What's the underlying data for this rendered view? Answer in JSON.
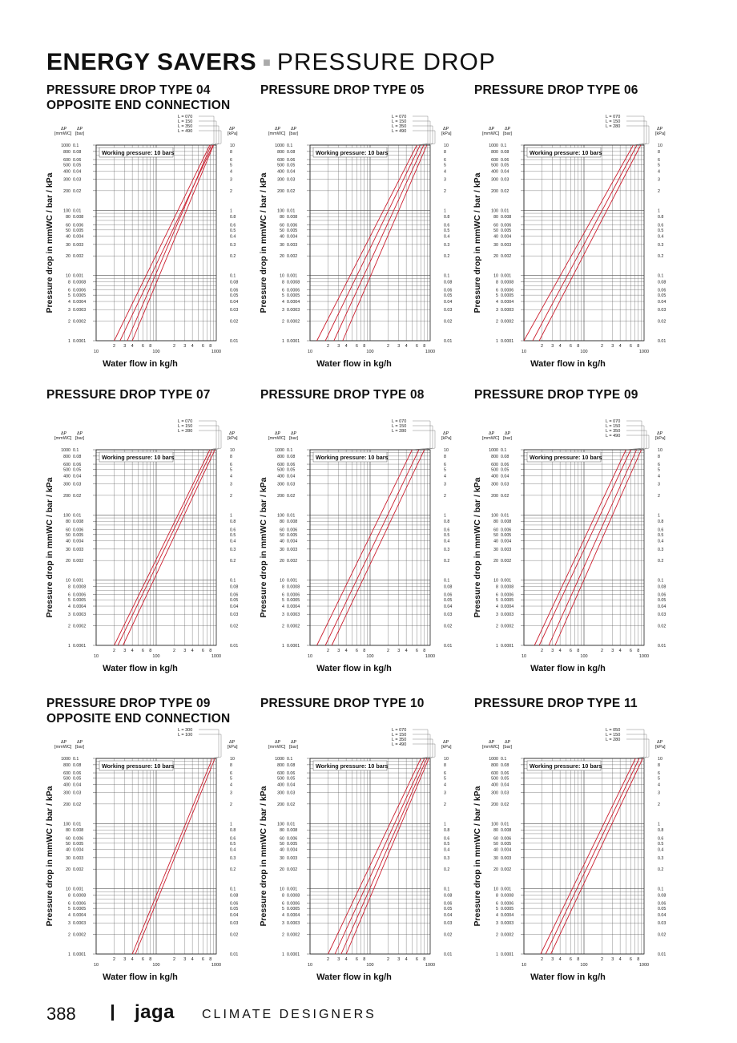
{
  "page": {
    "title_bold": "ENERGY SAVERS",
    "title_separator": "■",
    "title_light": "PRESSURE DROP",
    "page_number": "388",
    "brand": "jaga",
    "tagline": "CLIMATE DESIGNERS"
  },
  "axis_text": {
    "dp": "ΔP",
    "mmwc": "[mmWC]",
    "bar": "[bar]",
    "kpa": "[kPa]",
    "working_pressure": "Working pressure: 10 bars",
    "ylabel": "Pressure drop in mmWC / bar / kPa",
    "xlabel": "Water flow in kg/h"
  },
  "ticks": {
    "mmwc": [
      "1000",
      "800",
      "600",
      "500",
      "400",
      "300",
      "200",
      "100",
      "80",
      "60",
      "50",
      "40",
      "30",
      "20",
      "10",
      "8",
      "6",
      "5",
      "4",
      "3",
      "2",
      "1"
    ],
    "bar": [
      "0.1",
      "0.08",
      "0.06",
      "0.05",
      "0.04",
      "0.03",
      "0.02",
      "0.01",
      "0.008",
      "0.006",
      "0.005",
      "0.004",
      "0.003",
      "0.002",
      "0.001",
      "0.0008",
      "0.0006",
      "0.0005",
      "0.0004",
      "0.0003",
      "0.0002",
      "0.0001"
    ],
    "kpa": [
      "10",
      "8",
      "6",
      "5",
      "4",
      "3",
      "2",
      "1",
      "0.8",
      "0.6",
      "0.5",
      "0.4",
      "0.3",
      "0.2",
      "0.1",
      "0.08",
      "0.06",
      "0.05",
      "0.04",
      "0.03",
      "0.02",
      "0.01"
    ],
    "x_major": [
      "10",
      "100",
      "1000"
    ],
    "x_minor": [
      "2",
      "3",
      "4",
      "6",
      "8",
      "2",
      "3",
      "4",
      "6",
      "8"
    ]
  },
  "chart_data": [
    {
      "type": "line",
      "title": "PRESSURE DROP TYPE 04\nOPPOSITE END CONNECTION",
      "xlabel": "Water flow in kg/h",
      "ylabel": "Pressure drop in mmWC / bar / kPa",
      "xlim": [
        10,
        1000
      ],
      "ylim": [
        1,
        1000
      ],
      "xscale": "log",
      "yscale": "log",
      "annotation": "Working pressure: 10 bars",
      "series": [
        {
          "name": "L = 070",
          "x": [
            20,
            780
          ]
        },
        {
          "name": "L = 150",
          "x": [
            25,
            880
          ]
        },
        {
          "name": "L = 350",
          "x": [
            33,
            820
          ]
        },
        {
          "name": "L = 490",
          "x": [
            40,
            900
          ]
        }
      ]
    },
    {
      "type": "line",
      "title": "PRESSURE DROP TYPE 05",
      "xlabel": "Water flow in kg/h",
      "ylabel": "Pressure drop in mmWC / bar / kPa",
      "xlim": [
        10,
        1000
      ],
      "ylim": [
        1,
        1000
      ],
      "xscale": "log",
      "yscale": "log",
      "annotation": "Working pressure: 10 bars",
      "series": [
        {
          "name": "L = 070",
          "x": [
            13,
            600
          ]
        },
        {
          "name": "L = 150",
          "x": [
            18,
            680
          ]
        },
        {
          "name": "L = 350",
          "x": [
            25,
            780
          ]
        },
        {
          "name": "L = 490",
          "x": [
            35,
            880
          ]
        }
      ]
    },
    {
      "type": "line",
      "title": "PRESSURE DROP TYPE 06",
      "xlabel": "Water flow in kg/h",
      "ylabel": "Pressure drop in mmWC / bar / kPa",
      "xlim": [
        10,
        1000
      ],
      "ylim": [
        1,
        1000
      ],
      "xscale": "log",
      "yscale": "log",
      "annotation": "Working pressure: 10 bars",
      "series": [
        {
          "name": "L = 070",
          "x": [
            10,
            660
          ]
        },
        {
          "name": "L = 150",
          "x": [
            14,
            760
          ]
        },
        {
          "name": "L = 280",
          "x": [
            18,
            880
          ]
        }
      ]
    },
    {
      "type": "line",
      "title": "PRESSURE DROP TYPE 07",
      "xlabel": "Water flow in kg/h",
      "ylabel": "Pressure drop in mmWC / bar / kPa",
      "xlim": [
        10,
        1000
      ],
      "ylim": [
        1,
        1000
      ],
      "xscale": "log",
      "yscale": "log",
      "annotation": "Working pressure: 10 bars",
      "series": [
        {
          "name": "L = 070",
          "x": [
            20,
            780
          ]
        },
        {
          "name": "L = 150",
          "x": [
            23,
            860
          ]
        },
        {
          "name": "L = 280",
          "x": [
            28,
            950
          ]
        }
      ]
    },
    {
      "type": "line",
      "title": "PRESSURE DROP TYPE 08",
      "xlabel": "Water flow in kg/h",
      "ylabel": "Pressure drop in mmWC / bar / kPa",
      "xlim": [
        10,
        1000
      ],
      "ylim": [
        1,
        1000
      ],
      "xscale": "log",
      "yscale": "log",
      "annotation": "Working pressure: 10 bars",
      "series": [
        {
          "name": "L = 070",
          "x": [
            13,
            500
          ]
        },
        {
          "name": "L = 150",
          "x": [
            18,
            650
          ]
        },
        {
          "name": "L = 280",
          "x": [
            23,
            800
          ]
        }
      ]
    },
    {
      "type": "line",
      "title": "PRESSURE DROP TYPE 09",
      "xlabel": "Water flow in kg/h",
      "ylabel": "Pressure drop in mmWC / bar / kPa",
      "xlim": [
        10,
        1000
      ],
      "ylim": [
        1,
        1000
      ],
      "xscale": "log",
      "yscale": "log",
      "annotation": "Working pressure: 10 bars",
      "series": [
        {
          "name": "L = 070",
          "x": [
            15,
            500
          ]
        },
        {
          "name": "L = 150",
          "x": [
            18,
            600
          ]
        },
        {
          "name": "L = 350",
          "x": [
            26,
            750
          ]
        },
        {
          "name": "L = 490",
          "x": [
            33,
            900
          ]
        }
      ]
    },
    {
      "type": "line",
      "title": "PRESSURE DROP TYPE 09\nOPPOSITE END CONNECTION",
      "xlabel": "Water flow in kg/h",
      "ylabel": "Pressure drop in mmWC / bar / kPa",
      "xlim": [
        10,
        1000
      ],
      "ylim": [
        1,
        1000
      ],
      "xscale": "log",
      "yscale": "log",
      "annotation": "Working pressure: 10 bars",
      "series": [
        {
          "name": "L = 300",
          "x": [
            40,
            860
          ]
        },
        {
          "name": "L = 100",
          "x": [
            45,
            950
          ]
        }
      ]
    },
    {
      "type": "line",
      "title": "PRESSURE DROP TYPE 10",
      "xlabel": "Water flow in kg/h",
      "ylabel": "Pressure drop in mmWC / bar / kPa",
      "xlim": [
        10,
        1000
      ],
      "ylim": [
        1,
        1000
      ],
      "xscale": "log",
      "yscale": "log",
      "annotation": "Working pressure: 10 bars",
      "series": [
        {
          "name": "L = 070",
          "x": [
            20,
            700
          ]
        },
        {
          "name": "L = 150",
          "x": [
            26,
            800
          ]
        },
        {
          "name": "L = 350",
          "x": [
            33,
            880
          ]
        },
        {
          "name": "L = 490",
          "x": [
            40,
            950
          ]
        }
      ]
    },
    {
      "type": "line",
      "title": "PRESSURE DROP TYPE 11",
      "xlabel": "Water flow in kg/h",
      "ylabel": "Pressure drop in mmWC / bar / kPa",
      "xlim": [
        10,
        1000
      ],
      "ylim": [
        1,
        1000
      ],
      "xscale": "log",
      "yscale": "log",
      "annotation": "Working pressure: 10 bars",
      "series": [
        {
          "name": "L = 050",
          "x": [
            19,
            720
          ]
        },
        {
          "name": "L = 150",
          "x": [
            23,
            830
          ]
        },
        {
          "name": "L = 280",
          "x": [
            28,
            950
          ]
        }
      ]
    }
  ]
}
